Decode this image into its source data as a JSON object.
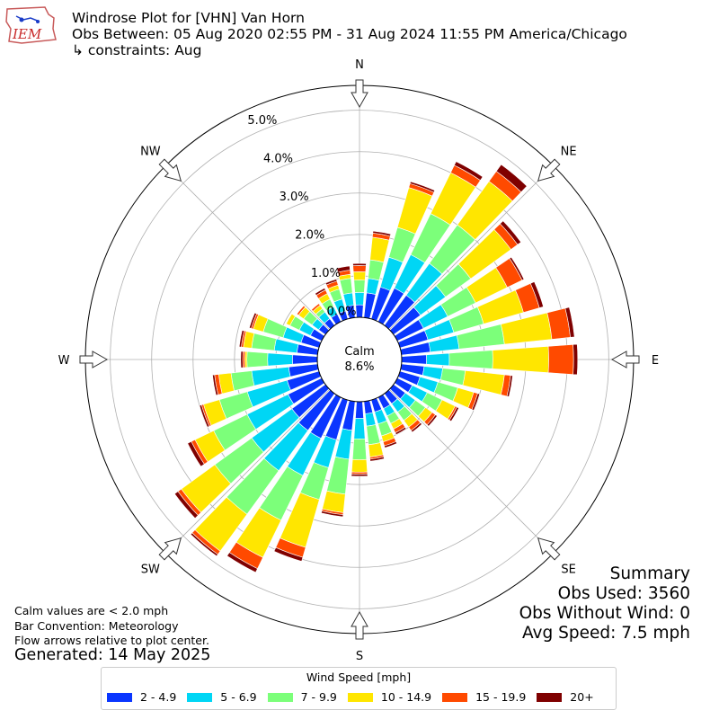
{
  "header": {
    "title": "Windrose Plot for [VHN] Van Horn",
    "period": "Obs Between: 05 Aug 2020 02:55 PM - 31 Aug 2024 11:55 PM America/Chicago",
    "constraints": "↳ constraints: Aug",
    "logo_text": "IEM"
  },
  "notes": {
    "calm_def": "Calm values are < 2.0 mph",
    "convention": "Bar Convention: Meteorology",
    "flow": "Flow arrows relative to plot center.",
    "generated": "Generated: 14 May 2025"
  },
  "summary": {
    "heading": "Summary",
    "obs_used": "Obs Used: 3560",
    "obs_without_wind": "Obs Without Wind: 0",
    "avg_speed": "Avg Speed: 7.5 mph"
  },
  "legend": {
    "title": "Wind Speed [mph]",
    "items": [
      {
        "label": "2 - 4.9",
        "color": "#0a36ff"
      },
      {
        "label": "5 - 6.9",
        "color": "#00d6f5"
      },
      {
        "label": "7 - 9.9",
        "color": "#7cff7a"
      },
      {
        "label": "10 - 14.9",
        "color": "#ffe600"
      },
      {
        "label": "15 - 19.9",
        "color": "#ff4a00"
      },
      {
        "label": "20+",
        "color": "#7f0000"
      }
    ]
  },
  "chart_data": {
    "type": "windrose",
    "title": "Windrose Plot for [VHN] Van Horn",
    "calm_label": "Calm",
    "calm_value": "8.6%",
    "radial_ticks": [
      "0.0%",
      "1.0%",
      "2.0%",
      "3.0%",
      "4.0%",
      "5.0%"
    ],
    "radial_range": [
      0,
      5.6
    ],
    "compass_labels": [
      "N",
      "NE",
      "E",
      "SE",
      "S",
      "SW",
      "W",
      "NW"
    ],
    "direction_step_deg": 10,
    "bins": [
      "2 - 4.9",
      "5 - 6.9",
      "7 - 9.9",
      "10 - 14.9",
      "15 - 19.9",
      "20+"
    ],
    "directions": [
      0,
      10,
      20,
      30,
      40,
      50,
      60,
      70,
      80,
      90,
      100,
      110,
      120,
      130,
      140,
      150,
      160,
      170,
      180,
      190,
      200,
      210,
      220,
      230,
      240,
      250,
      260,
      270,
      280,
      290,
      300,
      310,
      320,
      330,
      340,
      350
    ],
    "cumulative": [
      [
        0.3,
        0.6,
        0.9,
        1.1,
        1.25,
        1.3
      ],
      [
        0.6,
        0.95,
        1.4,
        1.95,
        2.05,
        2.1
      ],
      [
        0.8,
        1.55,
        2.3,
        3.3,
        3.4,
        3.45
      ],
      [
        0.9,
        1.8,
        2.9,
        4.0,
        4.2,
        4.3
      ],
      [
        0.9,
        1.85,
        3.0,
        4.3,
        4.6,
        4.8
      ],
      [
        0.8,
        1.55,
        2.3,
        3.5,
        3.7,
        3.8
      ],
      [
        0.7,
        1.35,
        2.1,
        2.95,
        3.35,
        3.4
      ],
      [
        0.7,
        1.35,
        2.1,
        3.1,
        3.5,
        3.6
      ],
      [
        0.7,
        1.4,
        2.5,
        3.65,
        4.1,
        4.2
      ],
      [
        0.6,
        1.15,
        2.2,
        3.55,
        4.15,
        4.25
      ],
      [
        0.55,
        1.0,
        1.55,
        2.5,
        2.65,
        2.7
      ],
      [
        0.5,
        0.95,
        1.45,
        1.85,
        1.95,
        2.0
      ],
      [
        0.4,
        0.8,
        1.2,
        1.55,
        1.6,
        1.65
      ],
      [
        0.35,
        0.65,
        0.95,
        1.15,
        1.25,
        1.3
      ],
      [
        0.3,
        0.55,
        0.8,
        1.0,
        1.1,
        1.15
      ],
      [
        0.3,
        0.5,
        0.7,
        0.85,
        0.95,
        1.0
      ],
      [
        0.3,
        0.6,
        0.9,
        1.05,
        1.15,
        1.2
      ],
      [
        0.3,
        0.6,
        1.05,
        1.35,
        1.4,
        1.45
      ],
      [
        0.4,
        0.9,
        1.4,
        1.7,
        1.75,
        1.8
      ],
      [
        0.7,
        1.4,
        2.25,
        2.7,
        2.75,
        2.8
      ],
      [
        1.0,
        1.7,
        2.5,
        3.7,
        3.95,
        4.05
      ],
      [
        1.1,
        2.1,
        3.3,
        4.3,
        4.6,
        4.7
      ],
      [
        1.1,
        2.3,
        3.6,
        4.7,
        4.8,
        4.85
      ],
      [
        1.0,
        2.2,
        3.3,
        4.3,
        4.4,
        4.5
      ],
      [
        0.9,
        2.0,
        2.9,
        3.4,
        3.5,
        3.6
      ],
      [
        0.8,
        1.8,
        2.5,
        2.9,
        2.95,
        3.0
      ],
      [
        0.7,
        1.6,
        2.1,
        2.4,
        2.5,
        2.55
      ],
      [
        0.6,
        1.2,
        1.7,
        1.75,
        1.8,
        1.85
      ],
      [
        0.5,
        1.05,
        1.6,
        1.8,
        1.85,
        1.9
      ],
      [
        0.45,
        0.9,
        1.4,
        1.65,
        1.7,
        1.75
      ],
      [
        0.3,
        0.6,
        0.85,
        0.95,
        0.95,
        0.95
      ],
      [
        0.2,
        0.4,
        0.65,
        0.8,
        0.85,
        0.85
      ],
      [
        0.2,
        0.4,
        0.5,
        0.6,
        0.65,
        0.65
      ],
      [
        0.2,
        0.4,
        0.6,
        0.75,
        0.85,
        0.9
      ],
      [
        0.2,
        0.5,
        0.75,
        0.85,
        0.95,
        1.0
      ],
      [
        0.3,
        0.6,
        0.95,
        1.05,
        1.15,
        1.25
      ]
    ]
  }
}
